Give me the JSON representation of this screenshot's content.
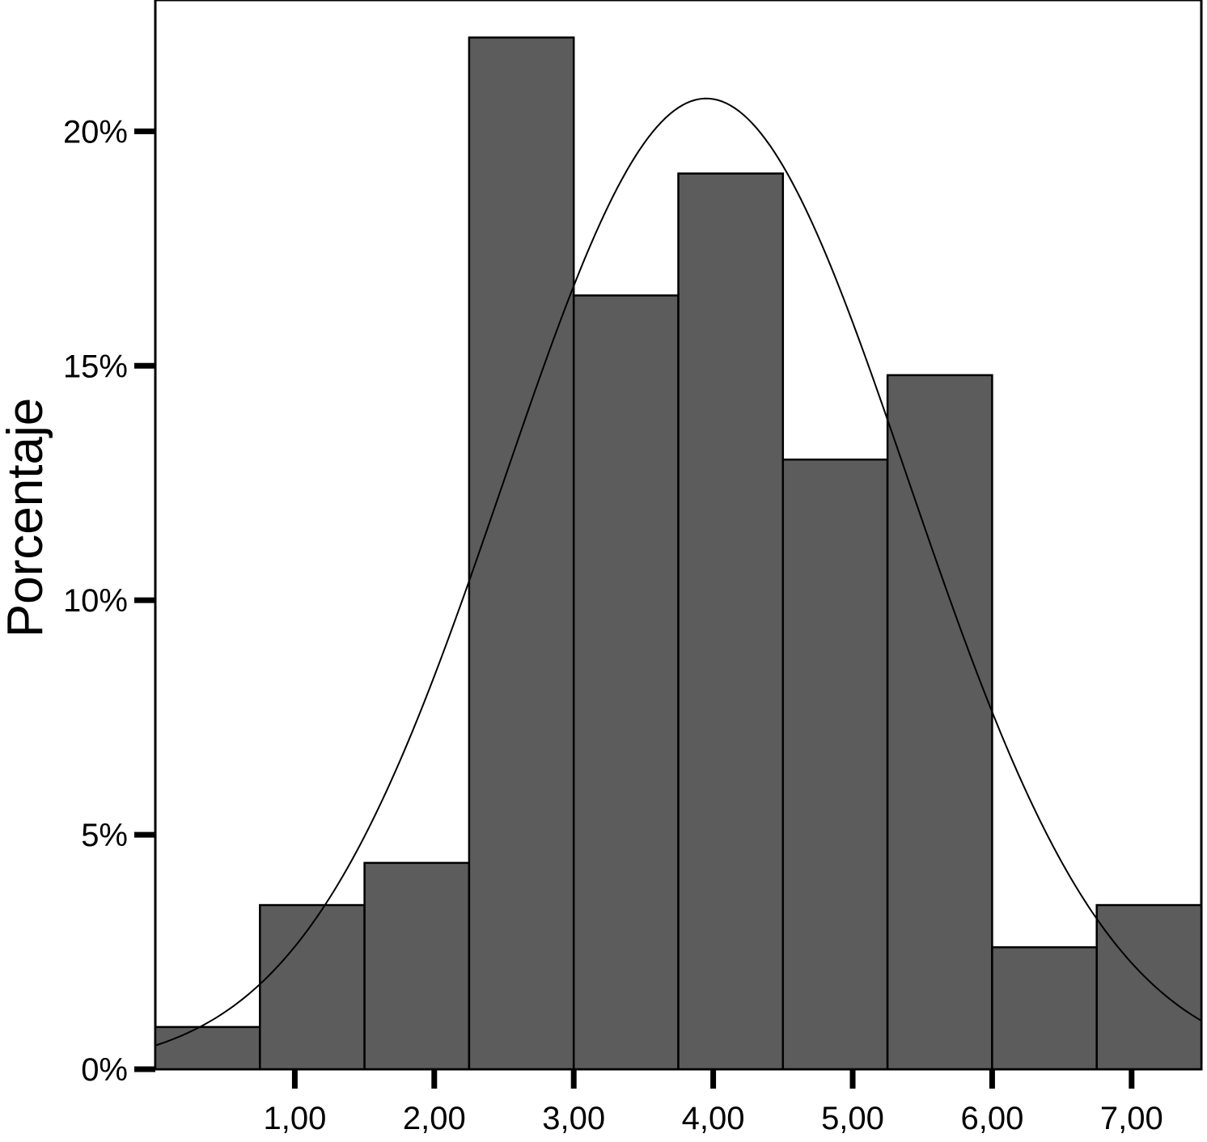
{
  "chart_data": {
    "type": "bar",
    "subtype": "histogram",
    "title": "",
    "xlabel": "",
    "ylabel": "Porcentaje",
    "bins": [
      {
        "start": 0.0,
        "end": 0.75,
        "value": 0.9
      },
      {
        "start": 0.75,
        "end": 1.5,
        "value": 3.5
      },
      {
        "start": 1.5,
        "end": 2.25,
        "value": 4.4
      },
      {
        "start": 2.25,
        "end": 3.0,
        "value": 22.0
      },
      {
        "start": 3.0,
        "end": 3.75,
        "value": 16.5
      },
      {
        "start": 3.75,
        "end": 4.5,
        "value": 19.1
      },
      {
        "start": 4.5,
        "end": 5.25,
        "value": 13.0
      },
      {
        "start": 5.25,
        "end": 6.0,
        "value": 14.8
      },
      {
        "start": 6.0,
        "end": 6.75,
        "value": 2.6
      },
      {
        "start": 6.75,
        "end": 7.5,
        "value": 3.5
      }
    ],
    "xlim": [
      0.0,
      7.5
    ],
    "ylim": [
      0,
      22.8
    ],
    "xticks": [
      {
        "value": 1,
        "label": "1,00"
      },
      {
        "value": 2,
        "label": "2,00"
      },
      {
        "value": 3,
        "label": "3,00"
      },
      {
        "value": 4,
        "label": "4,00"
      },
      {
        "value": 5,
        "label": "5,00"
      },
      {
        "value": 6,
        "label": "6,00"
      },
      {
        "value": 7,
        "label": "7,00"
      }
    ],
    "yticks": [
      {
        "value": 0,
        "label": "0%"
      },
      {
        "value": 5,
        "label": "5%"
      },
      {
        "value": 10,
        "label": "10%"
      },
      {
        "value": 15,
        "label": "15%"
      },
      {
        "value": 20,
        "label": "20%"
      }
    ],
    "normal_curve": {
      "mean": 3.95,
      "sd": 1.45,
      "peak": 20.7
    },
    "bar_color": "#5c5c5c",
    "grid": false,
    "legend": "none"
  }
}
